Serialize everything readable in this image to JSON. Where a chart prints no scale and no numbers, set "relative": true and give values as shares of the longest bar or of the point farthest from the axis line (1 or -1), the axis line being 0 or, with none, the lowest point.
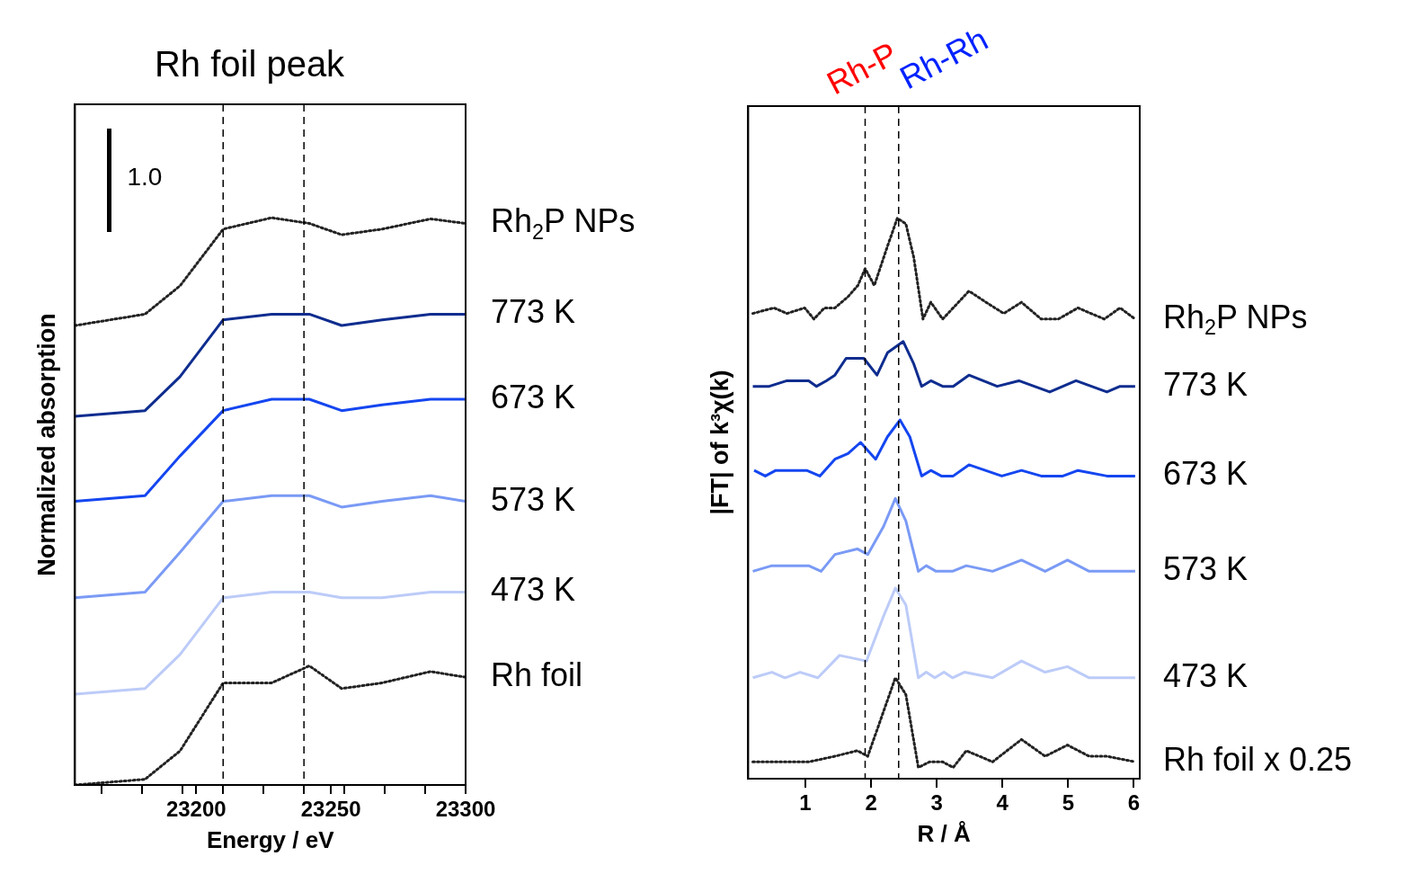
{
  "chart_data": [
    {
      "type": "line",
      "title": "Rh foil peak",
      "xlabel": "Energy / eV",
      "ylabel": "Normalized absorption",
      "relative": true,
      "grid": false,
      "legend": false,
      "marker": "none",
      "annotations": [
        "1.0"
      ],
      "xlim": [
        23155,
        23300
      ],
      "xticks": [
        {
          "value": 23165,
          "label": null
        },
        {
          "value": 23180,
          "label": null
        },
        {
          "value": 23195,
          "label": null
        },
        23200,
        {
          "value": 23210,
          "label": null
        },
        {
          "value": 23225,
          "label": null
        },
        {
          "value": 23240,
          "label": null
        },
        23250,
        {
          "value": 23255,
          "label": null
        },
        {
          "value": 23270,
          "label": null
        },
        {
          "value": 23285,
          "label": null
        },
        23300
      ],
      "ref_lines": [
        {
          "axis": "x",
          "value": 23210,
          "line_style": "dashed"
        },
        {
          "axis": "x",
          "value": 23240,
          "line_style": "dashed"
        }
      ],
      "x": [
        23155,
        23181,
        23194,
        23210,
        23228,
        23242,
        23254,
        23269,
        23287,
        23300
      ],
      "series": [
        {
          "name": "Rh$_{2}$P NPs",
          "color": "#222222",
          "line_style": "dotted",
          "values": [
            0.81,
            0.83,
            0.88,
            0.98,
            1.0,
            0.99,
            0.97,
            0.98,
            0.998,
            0.99
          ]
        },
        {
          "name": "773 K",
          "color": "#0f2d8f",
          "line_style": "solid",
          "values": [
            0.65,
            0.66,
            0.72,
            0.82,
            0.83,
            0.83,
            0.81,
            0.82,
            0.83,
            0.83
          ]
        },
        {
          "name": "673 K",
          "color": "#1446f0",
          "line_style": "solid",
          "values": [
            0.5,
            0.51,
            0.58,
            0.66,
            0.68,
            0.68,
            0.66,
            0.67,
            0.68,
            0.68
          ]
        },
        {
          "name": "573 K",
          "color": "#7a9af5",
          "line_style": "solid",
          "values": [
            0.33,
            0.34,
            0.41,
            0.5,
            0.51,
            0.51,
            0.49,
            0.5,
            0.51,
            0.5
          ]
        },
        {
          "name": "473 K",
          "color": "#bccbf8",
          "line_style": "solid",
          "values": [
            0.16,
            0.17,
            0.23,
            0.33,
            0.34,
            0.34,
            0.33,
            0.33,
            0.34,
            0.34
          ]
        },
        {
          "name": "Rh foil",
          "color": "#222222",
          "line_style": "dotted",
          "values": [
            0.0,
            0.01,
            0.06,
            0.18,
            0.18,
            0.21,
            0.17,
            0.18,
            0.2,
            0.19
          ]
        }
      ]
    },
    {
      "type": "line",
      "xlabel": "R / Å",
      "ylabel": "|FT| of k³χ(k)",
      "relative": true,
      "grid": false,
      "legend": false,
      "marker": "none",
      "xlim": [
        0.13,
        6.09
      ],
      "xticks": [
        1,
        2,
        3,
        4,
        5,
        6
      ],
      "ref_lines": [
        {
          "axis": "x",
          "value": 1.91,
          "label": "Rh-P",
          "line_style": "dashed"
        },
        {
          "axis": "x",
          "value": 2.42,
          "label": "Rh-Rh",
          "line_style": "dashed"
        }
      ],
      "series": [
        {
          "name": "Rh$_{2}$P NPs",
          "color": "#222222",
          "line_style": "dotted",
          "x": [
            0.2,
            0.52,
            0.72,
            0.99,
            1.13,
            1.29,
            1.45,
            1.65,
            1.8,
            1.91,
            2.05,
            2.25,
            2.4,
            2.53,
            2.65,
            2.79,
            2.91,
            3.09,
            3.25,
            3.49,
            3.75,
            4.02,
            4.29,
            4.59,
            4.85,
            5.15,
            5.55,
            5.79,
            6.02
          ],
          "values": [
            0.83,
            0.84,
            0.83,
            0.84,
            0.82,
            0.84,
            0.84,
            0.86,
            0.88,
            0.91,
            0.88,
            0.95,
            1.0,
            0.99,
            0.93,
            0.82,
            0.85,
            0.82,
            0.84,
            0.87,
            0.85,
            0.83,
            0.85,
            0.82,
            0.82,
            0.84,
            0.82,
            0.84,
            0.82
          ]
        },
        {
          "name": "773 K",
          "color": "#0f2d8f",
          "line_style": "solid",
          "x": [
            0.2,
            0.45,
            0.72,
            1.05,
            1.17,
            1.32,
            1.45,
            1.62,
            1.89,
            2.09,
            2.25,
            2.49,
            2.65,
            2.77,
            2.91,
            3.09,
            3.25,
            3.49,
            3.92,
            4.25,
            4.72,
            5.12,
            5.59,
            5.79,
            6.02
          ],
          "values": [
            0.7,
            0.7,
            0.71,
            0.71,
            0.7,
            0.71,
            0.72,
            0.75,
            0.75,
            0.72,
            0.76,
            0.78,
            0.74,
            0.7,
            0.71,
            0.7,
            0.7,
            0.72,
            0.7,
            0.71,
            0.69,
            0.71,
            0.69,
            0.7,
            0.7
          ]
        },
        {
          "name": "673 K",
          "color": "#1446f0",
          "line_style": "solid",
          "x": [
            0.22,
            0.39,
            0.55,
            1.02,
            1.22,
            1.45,
            1.65,
            1.84,
            2.07,
            2.25,
            2.44,
            2.59,
            2.77,
            2.91,
            3.07,
            3.25,
            3.49,
            3.99,
            4.29,
            4.59,
            4.92,
            5.15,
            5.59,
            5.79,
            6.02
          ],
          "values": [
            0.55,
            0.54,
            0.55,
            0.55,
            0.54,
            0.57,
            0.58,
            0.6,
            0.57,
            0.61,
            0.64,
            0.61,
            0.54,
            0.55,
            0.54,
            0.54,
            0.56,
            0.54,
            0.55,
            0.54,
            0.54,
            0.55,
            0.54,
            0.54,
            0.54
          ]
        },
        {
          "name": "573 K",
          "color": "#7a9af5",
          "line_style": "solid",
          "x": [
            0.2,
            0.49,
            0.79,
            1.05,
            1.24,
            1.45,
            1.79,
            1.95,
            2.19,
            2.37,
            2.53,
            2.72,
            2.84,
            2.99,
            3.13,
            3.24,
            3.45,
            3.85,
            4.29,
            4.65,
            4.99,
            5.32,
            5.79,
            6.02
          ],
          "values": [
            0.37,
            0.38,
            0.38,
            0.38,
            0.37,
            0.4,
            0.41,
            0.4,
            0.45,
            0.5,
            0.46,
            0.37,
            0.38,
            0.37,
            0.37,
            0.37,
            0.38,
            0.37,
            0.39,
            0.37,
            0.39,
            0.37,
            0.37,
            0.37
          ]
        },
        {
          "name": "473 K",
          "color": "#bccbf8",
          "line_style": "solid",
          "x": [
            0.2,
            0.49,
            0.69,
            0.92,
            1.19,
            1.52,
            1.93,
            2.19,
            2.37,
            2.53,
            2.72,
            2.84,
            2.97,
            3.11,
            3.24,
            3.42,
            3.85,
            4.29,
            4.65,
            4.99,
            5.32,
            5.79,
            6.02
          ],
          "values": [
            0.18,
            0.19,
            0.18,
            0.19,
            0.18,
            0.22,
            0.21,
            0.29,
            0.34,
            0.31,
            0.18,
            0.19,
            0.18,
            0.19,
            0.18,
            0.19,
            0.18,
            0.21,
            0.19,
            0.2,
            0.18,
            0.18,
            0.18
          ]
        },
        {
          "name": "Rh foil x 0.25",
          "color": "#222222",
          "line_style": "dotted",
          "x": [
            0.2,
            0.59,
            1.05,
            1.45,
            1.79,
            1.95,
            2.19,
            2.37,
            2.53,
            2.72,
            2.89,
            3.09,
            3.25,
            3.45,
            3.85,
            4.29,
            4.65,
            4.99,
            5.32,
            5.59,
            6.02
          ],
          "values": [
            0.03,
            0.03,
            0.03,
            0.04,
            0.05,
            0.04,
            0.12,
            0.18,
            0.15,
            0.02,
            0.03,
            0.03,
            0.02,
            0.05,
            0.03,
            0.07,
            0.04,
            0.06,
            0.04,
            0.04,
            0.03
          ]
        }
      ]
    }
  ]
}
